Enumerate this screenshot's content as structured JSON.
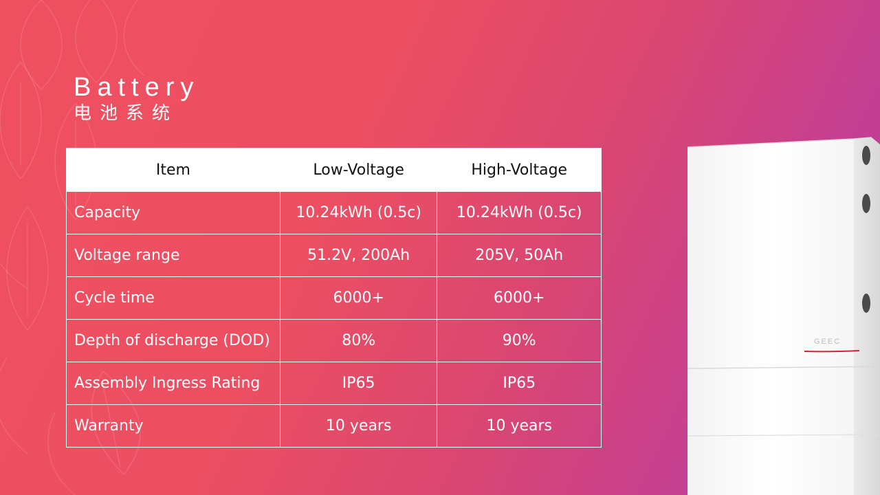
{
  "slide": {
    "title_en": "Battery",
    "title_cn": "电池系统",
    "colors": {
      "gradient_start": "#ef5060",
      "gradient_end": "#b23aa6",
      "header_bg": "#ffffff",
      "accent_red": "#d9202a"
    }
  },
  "table": {
    "headers": [
      "Item",
      "Low-Voltage",
      "High-Voltage"
    ],
    "rows": [
      {
        "item": "Capacity",
        "low": "10.24kWh (0.5c)",
        "high": "10.24kWh (0.5c)"
      },
      {
        "item": "Voltage range",
        "low": "51.2V, 200Ah",
        "high": "205V, 50Ah"
      },
      {
        "item": "Cycle time",
        "low": "6000+",
        "high": "6000+"
      },
      {
        "item": "Depth of discharge (DOD)",
        "low": "80%",
        "high": "90%"
      },
      {
        "item": "Assembly Ingress Rating",
        "low": "IP65",
        "high": "IP65"
      },
      {
        "item": "Warranty",
        "low": "10 years",
        "high": "10 years"
      }
    ]
  },
  "product": {
    "brand_text": "GEEC"
  }
}
